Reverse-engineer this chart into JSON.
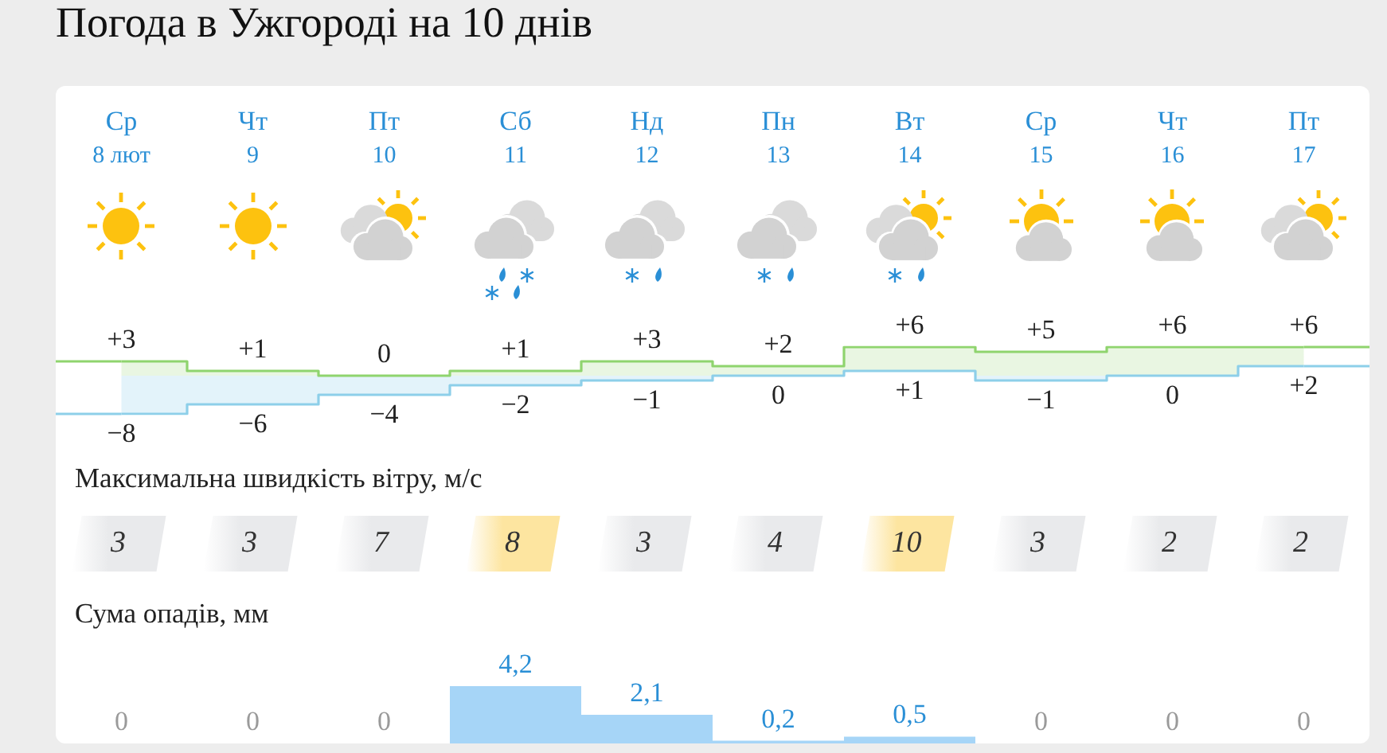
{
  "chart_data": [
    {
      "type": "step",
      "title": "Погода в Ужгороді на 10 днів",
      "categories": [
        "Ср 8 лют",
        "Чт 9",
        "Пт 10",
        "Сб 11",
        "Нд 12",
        "Пн 13",
        "Вт 14",
        "Ср 15",
        "Чт 16",
        "Пт 17"
      ],
      "series": [
        {
          "color": "#8fd46e",
          "values": [
            3,
            1,
            0,
            1,
            3,
            2,
            6,
            5,
            6,
            6
          ],
          "value_labels": [
            "+3",
            "+1",
            "0",
            "+1",
            "+3",
            "+2",
            "+6",
            "+5",
            "+6",
            "+6"
          ],
          "lower": [
            -8,
            -6,
            -4,
            -2,
            -1,
            0,
            1,
            -1,
            0,
            2
          ],
          "upper": [
            3,
            1,
            0,
            1,
            3,
            2,
            6,
            5,
            6,
            6
          ]
        },
        {
          "color": "#8dcfe9",
          "values": [
            -8,
            -6,
            -4,
            -2,
            -1,
            0,
            1,
            -1,
            0,
            2
          ],
          "value_labels": [
            "−8",
            "−6",
            "−4",
            "−2",
            "−1",
            "0",
            "+1",
            "−1",
            "0",
            "+2"
          ]
        }
      ],
      "tick_labels": "x"
    },
    {
      "type": "other",
      "title": "Максимальна швидкість вітру, м/с",
      "categories": [
        null,
        null,
        null,
        null,
        null,
        null,
        null,
        null,
        null,
        null
      ],
      "values": [
        3,
        3,
        7,
        8,
        3,
        4,
        10,
        3,
        2,
        2
      ],
      "colors": [
        "#e9eaec",
        "#e9eaec",
        "#e9eaec",
        "#fde5a0",
        "#e9eaec",
        "#e9eaec",
        "#fde5a0",
        "#e9eaec",
        "#e9eaec",
        "#e9eaec"
      ],
      "data_labels": true
    },
    {
      "type": "area",
      "title": "Сума опадів, мм",
      "categories": [
        null,
        null,
        null,
        null,
        null,
        null,
        null,
        null,
        null,
        null
      ],
      "values": [
        0,
        0,
        0,
        4.2,
        2.1,
        0.2,
        0.5,
        0,
        0,
        0
      ],
      "color": "#a6d5f7",
      "value_labels": [
        "0",
        "0",
        "0",
        "4,2",
        "2,1",
        "0,2",
        "0,5",
        "0",
        "0",
        "0"
      ],
      "tick_labels": false
    }
  ]
}
